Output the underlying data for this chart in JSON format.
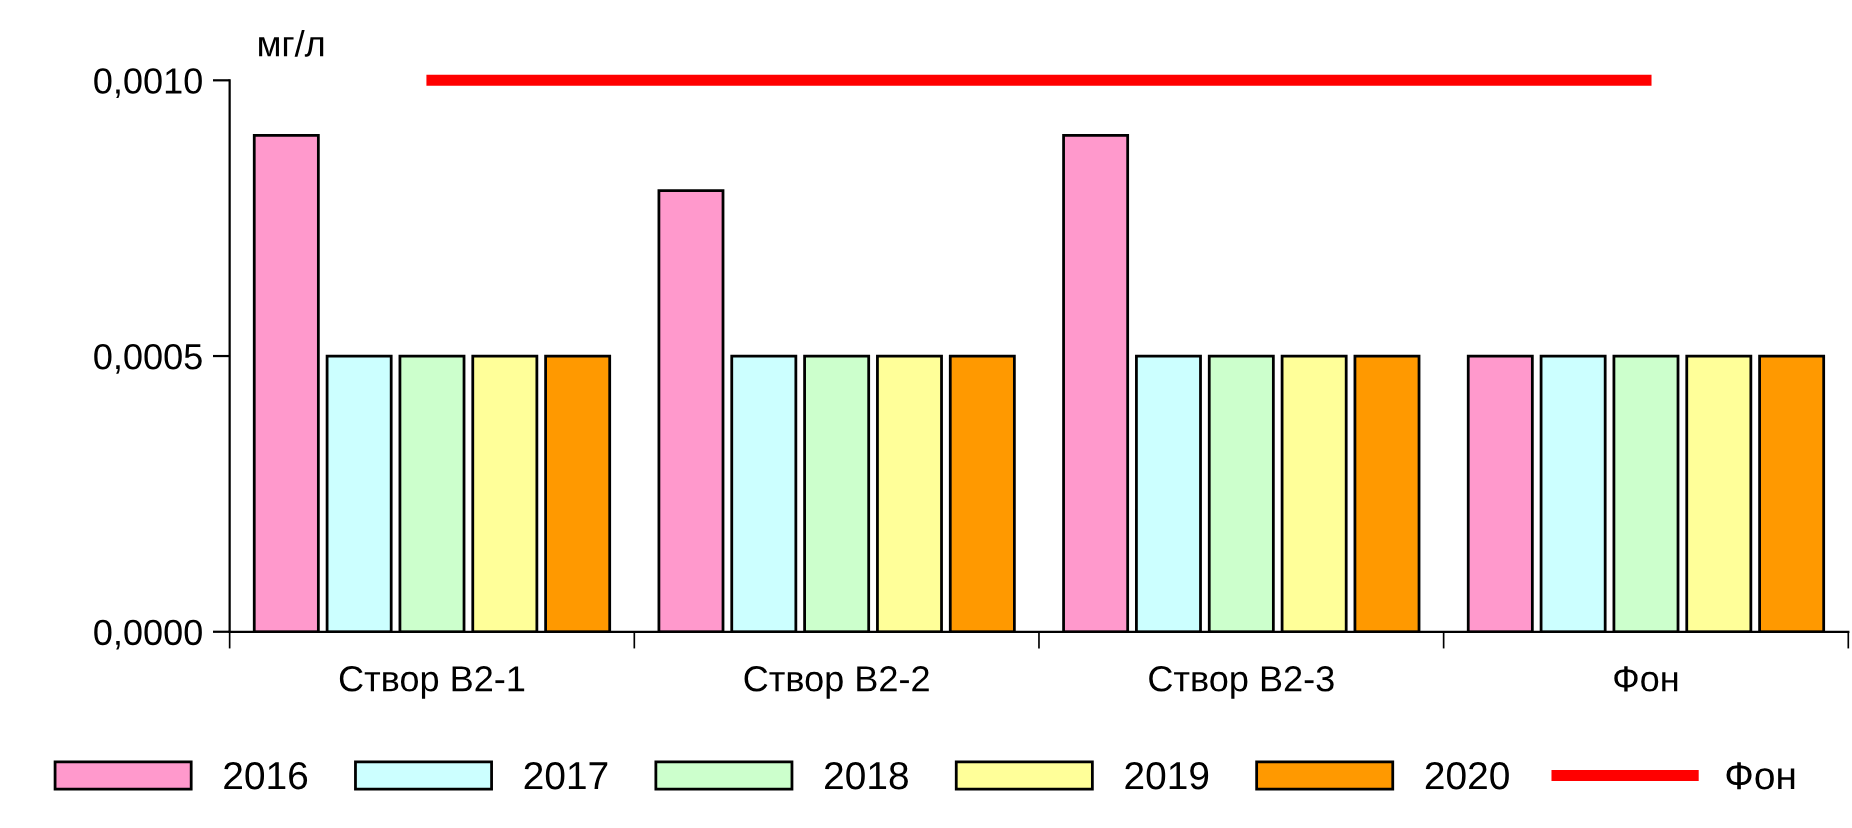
{
  "chart_data": {
    "type": "bar",
    "ylabel": "мг/л",
    "categories": [
      "Створ В2-1",
      "Створ В2-2",
      "Створ В2-3",
      "Фон"
    ],
    "series": [
      {
        "name": "2016",
        "color": "#ff99cc",
        "values": [
          0.0009,
          0.0008,
          0.0009,
          0.0005
        ]
      },
      {
        "name": "2017",
        "color": "#ccffff",
        "values": [
          0.0005,
          0.0005,
          0.0005,
          0.0005
        ]
      },
      {
        "name": "2018",
        "color": "#ccffcc",
        "values": [
          0.0005,
          0.0005,
          0.0005,
          0.0005
        ]
      },
      {
        "name": "2019",
        "color": "#ffff99",
        "values": [
          0.0005,
          0.0005,
          0.0005,
          0.0005
        ]
      },
      {
        "name": "2020",
        "color": "#ff9900",
        "values": [
          0.0005,
          0.0005,
          0.0005,
          0.0005
        ]
      },
      {
        "name": "Фон",
        "type": "line",
        "color": "#ff0000",
        "values": [
          0.001,
          0.001,
          0.001,
          0.001
        ]
      }
    ],
    "ylim": [
      0,
      0.001
    ],
    "yticks": [
      {
        "value": 0,
        "label": "0,0000"
      },
      {
        "value": 0.0005,
        "label": "0,0005"
      },
      {
        "value": 0.001,
        "label": "0,0010"
      }
    ],
    "grid": false,
    "legend": "bottom"
  }
}
